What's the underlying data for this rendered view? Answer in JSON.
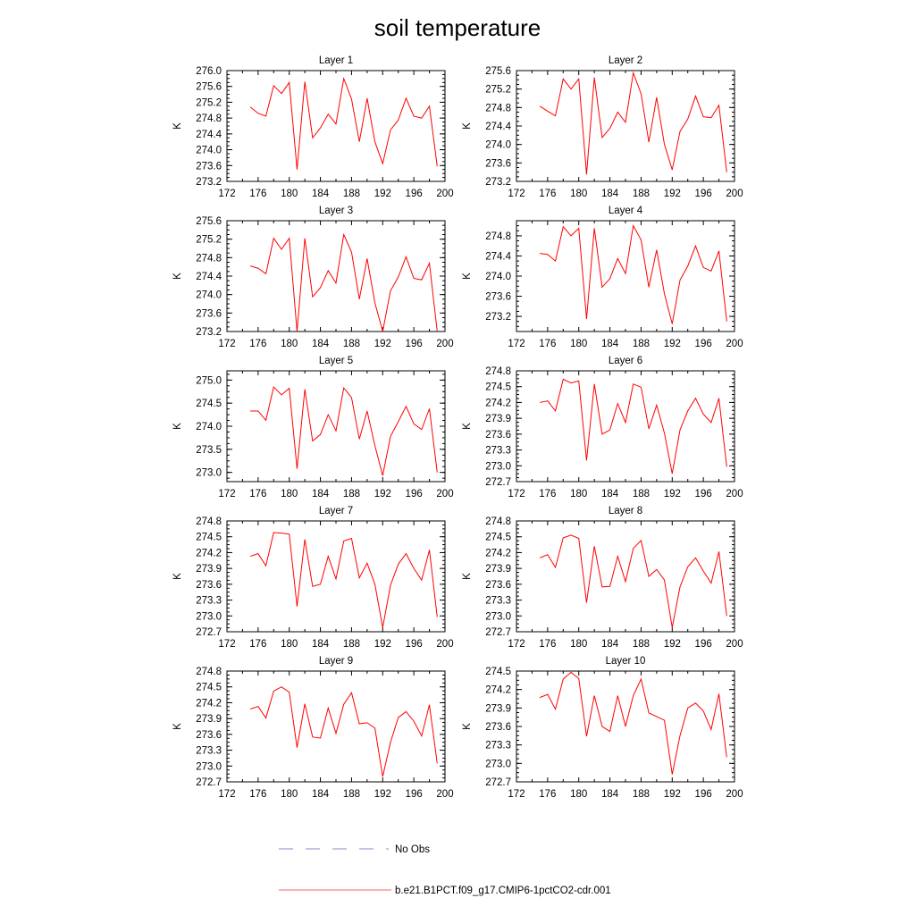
{
  "chart_data": {
    "title": "soil temperature",
    "legend": [
      {
        "label": "No Obs",
        "color": "#8888cc",
        "style": "dashed"
      },
      {
        "label": "b.e21.B1PCT.f09_g17.CMIP6-1pctCO2-cdr.001",
        "color": "#ff0000",
        "style": "solid"
      }
    ],
    "x": [
      175,
      176,
      177,
      178,
      179,
      180,
      181,
      182,
      183,
      184,
      185,
      186,
      187,
      188,
      189,
      190,
      191,
      192,
      193,
      194,
      195,
      196,
      197,
      198,
      199
    ],
    "panels": [
      {
        "type": "line",
        "title": "Layer 1",
        "ylabel": "K",
        "xlim": [
          172,
          200
        ],
        "xticks": [
          "172",
          "176",
          "180",
          "184",
          "188",
          "192",
          "196",
          "200"
        ],
        "ylim": [
          273.2,
          276.0
        ],
        "yticks": [
          "273.2",
          "273.6",
          "274.0",
          "274.4",
          "274.8",
          "275.2",
          "275.6",
          "276.0"
        ],
        "values": [
          275.08,
          274.92,
          274.85,
          275.62,
          275.42,
          275.7,
          273.5,
          275.72,
          274.3,
          274.55,
          274.9,
          274.65,
          275.8,
          275.28,
          274.2,
          275.3,
          274.2,
          273.65,
          274.5,
          274.75,
          275.3,
          274.85,
          274.8,
          275.1,
          273.58
        ],
        "color": "#ff0000"
      },
      {
        "type": "line",
        "title": "Layer 2",
        "ylabel": "K",
        "xlim": [
          172,
          200
        ],
        "xticks": [
          "172",
          "176",
          "180",
          "184",
          "188",
          "192",
          "196",
          "200"
        ],
        "ylim": [
          273.2,
          275.6
        ],
        "yticks": [
          "273.2",
          "273.6",
          "274.0",
          "274.4",
          "274.8",
          "275.2",
          "275.6"
        ],
        "values": [
          274.83,
          274.72,
          274.62,
          275.42,
          275.2,
          275.42,
          273.35,
          275.45,
          274.15,
          274.35,
          274.7,
          274.48,
          275.55,
          275.1,
          274.05,
          275.02,
          274.0,
          273.45,
          274.28,
          274.55,
          275.05,
          274.6,
          274.58,
          274.85,
          273.4
        ],
        "color": "#ff0000"
      },
      {
        "type": "line",
        "title": "Layer 3",
        "ylabel": "K",
        "xlim": [
          172,
          200
        ],
        "xticks": [
          "172",
          "176",
          "180",
          "184",
          "188",
          "192",
          "196",
          "200"
        ],
        "ylim": [
          273.2,
          275.6
        ],
        "yticks": [
          "273.2",
          "273.6",
          "274.0",
          "274.4",
          "274.8",
          "275.2",
          "275.6"
        ],
        "values": [
          274.62,
          274.57,
          274.45,
          275.22,
          274.98,
          275.22,
          273.2,
          275.22,
          273.95,
          274.15,
          274.52,
          274.25,
          275.3,
          274.92,
          273.9,
          274.78,
          273.82,
          273.2,
          274.08,
          274.38,
          274.82,
          274.35,
          274.32,
          274.68,
          273.2
        ],
        "color": "#ff0000"
      },
      {
        "type": "line",
        "title": "Layer 4",
        "ylabel": "K",
        "xlim": [
          172,
          200
        ],
        "xticks": [
          "172",
          "176",
          "180",
          "184",
          "188",
          "192",
          "196",
          "200"
        ],
        "ylim": [
          272.9,
          275.1
        ],
        "yticks": [
          "273.2",
          "273.6",
          "274.0",
          "274.4",
          "274.8"
        ],
        "values": [
          274.45,
          274.43,
          274.3,
          274.98,
          274.8,
          274.95,
          273.15,
          274.95,
          273.78,
          273.95,
          274.35,
          274.05,
          275.0,
          274.72,
          273.78,
          274.52,
          273.65,
          273.05,
          273.92,
          274.2,
          274.6,
          274.17,
          274.1,
          274.5,
          273.1
        ],
        "color": "#ff0000"
      },
      {
        "type": "line",
        "title": "Layer 5",
        "ylabel": "K",
        "xlim": [
          172,
          200
        ],
        "xticks": [
          "172",
          "176",
          "180",
          "184",
          "188",
          "192",
          "196",
          "200"
        ],
        "ylim": [
          272.8,
          275.2
        ],
        "yticks": [
          "273.0",
          "273.5",
          "274.0",
          "274.5",
          "275.0"
        ],
        "values": [
          274.33,
          274.33,
          274.13,
          274.85,
          274.68,
          274.82,
          273.08,
          274.8,
          273.68,
          273.82,
          274.25,
          273.9,
          274.83,
          274.62,
          273.72,
          274.33,
          273.58,
          272.93,
          273.78,
          274.1,
          274.43,
          274.05,
          273.93,
          274.38,
          273.0
        ],
        "color": "#ff0000"
      },
      {
        "type": "line",
        "title": "Layer 6",
        "ylabel": "K",
        "xlim": [
          172,
          200
        ],
        "xticks": [
          "172",
          "176",
          "180",
          "184",
          "188",
          "192",
          "196",
          "200"
        ],
        "ylim": [
          272.7,
          274.8
        ],
        "yticks": [
          "272.7",
          "273.0",
          "273.3",
          "273.6",
          "273.9",
          "274.2",
          "274.5",
          "274.8"
        ],
        "values": [
          274.2,
          274.23,
          274.04,
          274.64,
          274.57,
          274.61,
          273.1,
          274.55,
          273.6,
          273.68,
          274.18,
          273.82,
          274.55,
          274.49,
          273.7,
          274.15,
          273.62,
          272.85,
          273.68,
          274.04,
          274.28,
          273.98,
          273.82,
          274.28,
          272.98
        ],
        "color": "#ff0000"
      },
      {
        "type": "line",
        "title": "Layer 7",
        "ylabel": "K",
        "xlim": [
          172,
          200
        ],
        "xticks": [
          "172",
          "176",
          "180",
          "184",
          "188",
          "192",
          "196",
          "200"
        ],
        "ylim": [
          272.7,
          274.8
        ],
        "yticks": [
          "272.7",
          "273.0",
          "273.3",
          "273.6",
          "273.9",
          "274.2",
          "274.5",
          "274.8"
        ],
        "values": [
          274.13,
          274.18,
          273.95,
          274.58,
          274.57,
          274.55,
          273.18,
          274.45,
          273.56,
          273.6,
          274.13,
          273.7,
          274.42,
          274.47,
          273.72,
          274.0,
          273.6,
          272.78,
          273.58,
          273.98,
          274.18,
          273.9,
          273.68,
          274.25,
          272.98
        ],
        "color": "#ff0000"
      },
      {
        "type": "line",
        "title": "Layer 8",
        "ylabel": "K",
        "xlim": [
          172,
          200
        ],
        "xticks": [
          "172",
          "176",
          "180",
          "184",
          "188",
          "192",
          "196",
          "200"
        ],
        "ylim": [
          272.7,
          274.8
        ],
        "yticks": [
          "272.7",
          "273.0",
          "273.3",
          "273.6",
          "273.9",
          "274.2",
          "274.5",
          "274.8"
        ],
        "values": [
          274.1,
          274.16,
          273.92,
          274.48,
          274.53,
          274.47,
          273.25,
          274.32,
          273.55,
          273.56,
          274.13,
          273.65,
          274.28,
          274.43,
          273.75,
          273.88,
          273.68,
          272.78,
          273.55,
          273.93,
          274.1,
          273.85,
          273.62,
          274.22,
          273.0
        ],
        "color": "#ff0000"
      },
      {
        "type": "line",
        "title": "Layer 9",
        "ylabel": "K",
        "xlim": [
          172,
          200
        ],
        "xticks": [
          "172",
          "176",
          "180",
          "184",
          "188",
          "192",
          "196",
          "200"
        ],
        "ylim": [
          272.7,
          274.8
        ],
        "yticks": [
          "272.7",
          "273.0",
          "273.3",
          "273.6",
          "273.9",
          "274.2",
          "274.5",
          "274.8"
        ],
        "values": [
          274.08,
          274.13,
          273.91,
          274.42,
          274.5,
          274.4,
          273.35,
          274.18,
          273.55,
          273.53,
          274.1,
          273.62,
          274.17,
          274.39,
          273.8,
          273.82,
          273.72,
          272.8,
          273.45,
          273.92,
          274.03,
          273.85,
          273.57,
          274.16,
          273.05
        ],
        "color": "#ff0000"
      },
      {
        "type": "line",
        "title": "Layer 10",
        "ylabel": "K",
        "xlim": [
          172,
          200
        ],
        "xticks": [
          "172",
          "176",
          "180",
          "184",
          "188",
          "192",
          "196",
          "200"
        ],
        "ylim": [
          272.7,
          274.5
        ],
        "yticks": [
          "272.7",
          "273.0",
          "273.3",
          "273.6",
          "273.9",
          "274.2",
          "274.5"
        ],
        "values": [
          274.07,
          274.12,
          273.88,
          274.37,
          274.48,
          274.38,
          273.44,
          274.1,
          273.6,
          273.52,
          274.1,
          273.6,
          274.1,
          274.37,
          273.82,
          273.76,
          273.7,
          272.82,
          273.45,
          273.9,
          273.98,
          273.85,
          273.55,
          274.13,
          273.1
        ],
        "color": "#ff0000"
      }
    ]
  }
}
